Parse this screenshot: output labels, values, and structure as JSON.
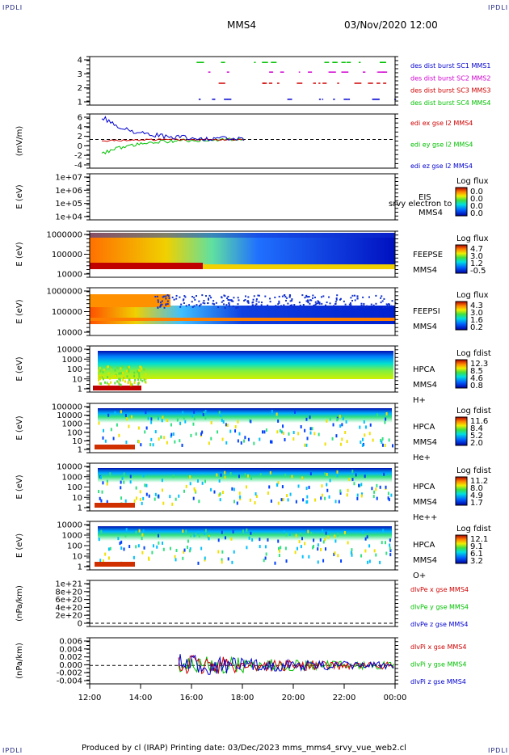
{
  "corners": {
    "tl": "IPDLI",
    "tr": "IPDLI",
    "bl": "IPDLI",
    "br": "IPDLI"
  },
  "header": {
    "spacecraft": "MMS4",
    "datetime": "03/Nov/2020 12:00"
  },
  "footer": {
    "text": "Produced by cl (IRAP)   Printing date: 03/Dec/2023   mms_mms4_srvy_vue_web2.cl"
  },
  "colors": {
    "red": "#d00000",
    "green": "#00c000",
    "blue": "#0000d0",
    "magenta": "#d000d0",
    "dash": "#000000"
  },
  "chart_data": {
    "type": "stack",
    "x_axis": {
      "ticks": [
        "12:00",
        "14:00",
        "16:00",
        "18:00",
        "20:00",
        "22:00",
        "00:00"
      ],
      "range_hours": [
        0,
        12
      ]
    },
    "panels": [
      {
        "id": "burst",
        "type": "line",
        "ylabel": "",
        "yticks": [
          "4",
          "3",
          "2",
          "1"
        ],
        "legend": [
          {
            "text": "des dist burst SC1 MMS1",
            "color": "#0000d0"
          },
          {
            "text": "des dist burst SC2 MMS2",
            "color": "#d000d0"
          },
          {
            "text": "des dist burst SC3 MMS3",
            "color": "#d00000"
          },
          {
            "text": "des dist burst SC4 MMS4",
            "color": "#00c000"
          }
        ]
      },
      {
        "id": "efield",
        "type": "line",
        "ylabel": "(mV/m)",
        "yticks": [
          "6",
          "4",
          "2",
          "0",
          "-2",
          "-4"
        ],
        "legend": [
          {
            "text": "edi ex gse l2 MMS4",
            "color": "#d00000"
          },
          {
            "text": "edi ey gse l2 MMS4",
            "color": "#00c000"
          },
          {
            "text": "edi ez gse l2 MMS4",
            "color": "#0000d0"
          }
        ]
      },
      {
        "id": "eis",
        "type": "heatmap",
        "ylabel": "E (eV)",
        "yticks": [
          "1e+07",
          "1e+06",
          "1e+05",
          "1e+04"
        ],
        "labels": [
          "EIS",
          "MMS4"
        ],
        "overlay": "srvy electron to",
        "cbar_title": "Log flux",
        "cbar_ticks": [
          "0.0",
          "0.0",
          "0.0",
          "0.0"
        ]
      },
      {
        "id": "feepse",
        "type": "heatmap",
        "ylabel": "E (eV)",
        "yticks": [
          "1000000",
          "100000",
          "10000"
        ],
        "labels": [
          "FEEPSE",
          "MMS4"
        ],
        "cbar_title": "Log flux",
        "cbar_ticks": [
          "4.7",
          "3.0",
          "1.2",
          "-0.5"
        ]
      },
      {
        "id": "feepsi",
        "type": "heatmap",
        "ylabel": "E (eV)",
        "yticks": [
          "1000000",
          "100000",
          "10000"
        ],
        "labels": [
          "FEEPSI",
          "MMS4"
        ],
        "cbar_title": "Log flux",
        "cbar_ticks": [
          "4.3",
          "3.0",
          "1.6",
          "0.2"
        ]
      },
      {
        "id": "hpca_h",
        "type": "heatmap",
        "ylabel": "E (eV)",
        "yticks": [
          "10000",
          "1000",
          "100",
          "10",
          "1"
        ],
        "labels": [
          "HPCA",
          "MMS4",
          "H+"
        ],
        "cbar_title": "Log fdist",
        "cbar_ticks": [
          "12.3",
          "8.5",
          "4.6",
          "0.8"
        ]
      },
      {
        "id": "hpca_he",
        "type": "heatmap",
        "ylabel": "E (eV)",
        "yticks": [
          "100000",
          "10000",
          "1000",
          "100",
          "10",
          "1"
        ],
        "labels": [
          "HPCA",
          "MMS4",
          "He+"
        ],
        "cbar_title": "Log fdist",
        "cbar_ticks": [
          "11.6",
          "8.4",
          "5.2",
          "2.0"
        ]
      },
      {
        "id": "hpca_he2",
        "type": "heatmap",
        "ylabel": "E (eV)",
        "yticks": [
          "10000",
          "1000",
          "100",
          "10",
          "1"
        ],
        "labels": [
          "HPCA",
          "MMS4",
          "He++"
        ],
        "cbar_title": "Log fdist",
        "cbar_ticks": [
          "11.2",
          "8.0",
          "4.9",
          "1.7"
        ]
      },
      {
        "id": "hpca_o",
        "type": "heatmap",
        "ylabel": "E (eV)",
        "yticks": [
          "10000",
          "1000",
          "100",
          "10",
          "1"
        ],
        "labels": [
          "HPCA",
          "MMS4",
          "O+"
        ],
        "cbar_title": "Log fdist",
        "cbar_ticks": [
          "12.1",
          "9.1",
          "6.1",
          "3.2"
        ]
      },
      {
        "id": "dlvpe",
        "type": "line",
        "ylabel": "(nPa/km)",
        "yticks": [
          "1e+21",
          "8e+20",
          "6e+20",
          "4e+20",
          "2e+20",
          "0"
        ],
        "legend": [
          {
            "text": "dlvPe x gse MMS4",
            "color": "#d00000"
          },
          {
            "text": "dlvPe y gse MMS4",
            "color": "#00c000"
          },
          {
            "text": "dlvPe z gse MMS4",
            "color": "#0000d0"
          }
        ]
      },
      {
        "id": "dlvpi",
        "type": "line",
        "ylabel": "(nPa/km)",
        "yticks": [
          "0.006",
          "0.004",
          "0.002",
          "0.000",
          "-0.002",
          "-0.004"
        ],
        "legend": [
          {
            "text": "dlvPi x gse MMS4",
            "color": "#d00000"
          },
          {
            "text": "dlvPi y gse MMS4",
            "color": "#00c000"
          },
          {
            "text": "dlvPi z gse MMS4",
            "color": "#0000d0"
          }
        ]
      }
    ]
  }
}
